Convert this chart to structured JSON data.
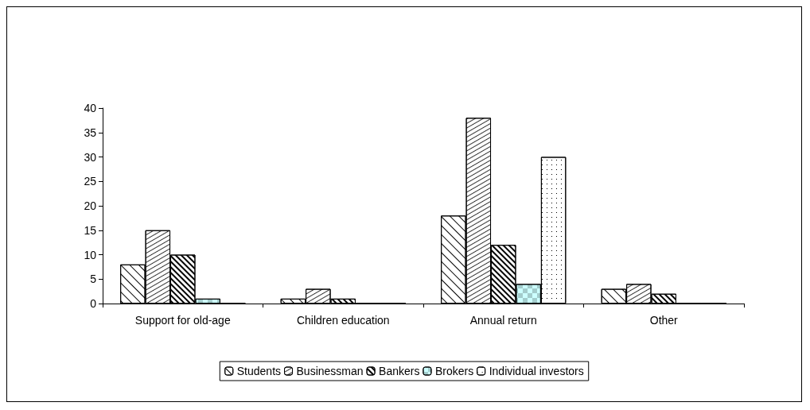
{
  "chart_data": {
    "type": "bar",
    "categories": [
      "Support for old-age",
      "Children education",
      "Annual return",
      "Other"
    ],
    "series": [
      {
        "name": "Students",
        "color": "#ffffff",
        "values": [
          8,
          1,
          18,
          3
        ]
      },
      {
        "name": "Businessman",
        "color": "#ffffff",
        "values": [
          15,
          3,
          38,
          4
        ]
      },
      {
        "name": "Bankers",
        "color": "#ffffff",
        "values": [
          10,
          1,
          12,
          2
        ]
      },
      {
        "name": "Brokers",
        "color": "#ccffff",
        "values": [
          1,
          0,
          4,
          0
        ]
      },
      {
        "name": "Individual investors",
        "color": "#ffffff",
        "values": [
          0,
          0,
          30,
          0
        ]
      }
    ],
    "ylim": [
      0,
      40
    ],
    "yticks": [
      0,
      5,
      10,
      15,
      20,
      25,
      30,
      35,
      40
    ],
    "grid": false,
    "legend": "bottom"
  }
}
